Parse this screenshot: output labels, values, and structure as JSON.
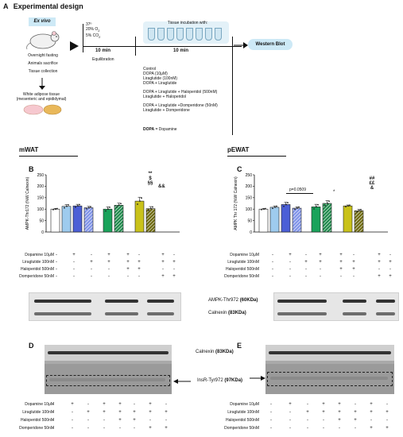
{
  "panel_a": {
    "letter": "A",
    "title": "Experimental design",
    "ex_vivo": "Ex vivo",
    "conditions": [
      "37º",
      "20% O",
      "5% CO"
    ],
    "cond_subscript": "2",
    "mouse_steps": [
      "Overnight fasting",
      "Animals sacrifice",
      "Tissue collection"
    ],
    "wat_label": "White adipose tissue",
    "wat_sub": "(mesenteric and epididymal)",
    "equil_time": "10 min",
    "equil_label": "Equilibration",
    "incubation_title": "Tissue incubation with:",
    "incubation_time": "10 min",
    "treatments": [
      "Control",
      "DOPA (10μM)",
      "Liraglutide (100nM)",
      "DOPA + Liraglutide",
      "DOPA + Liraglutide + Haloperidol (500nM)",
      "Liraglutide + Haloperidol",
      "DOPA + Liraglutide +Domperidone (50nM)",
      "Liraglutide + Domperidone"
    ],
    "dopa_bold": "DOPA",
    "dopa_def": " = Dopamine",
    "western": "Western Blot"
  },
  "mwat": {
    "title": "mWAT"
  },
  "pewat": {
    "title": "pEWAT"
  },
  "panel_b": {
    "letter": "B",
    "stats": [
      "**",
      "$",
      "§§"
    ],
    "stats_right": "&&"
  },
  "panel_c": {
    "letter": "C",
    "pval": "p=0.0509",
    "star": "*",
    "stats": [
      "##",
      "££",
      "&"
    ]
  },
  "panel_d": {
    "letter": "D"
  },
  "panel_e": {
    "letter": "E"
  },
  "blot_labels": {
    "ampk": "AMPK-Thr972 ",
    "ampk_kda": "(60KDa)",
    "calnexin": "Calnexin ",
    "calnexin_kda": "(83KDa)",
    "insr": "InsR-Tyr972 ",
    "insr_kda": "(97KDa)"
  },
  "treatment_rows": [
    {
      "label": "Dopamine  10μM",
      "marks": [
        "-",
        "+",
        "-",
        "+",
        "+",
        "-",
        "+",
        "-"
      ]
    },
    {
      "label": "Liraglutide 100nM",
      "marks": [
        "-",
        "-",
        "+",
        "+",
        "+",
        "+",
        "+",
        "+"
      ]
    },
    {
      "label": "Haloperidol 500nM",
      "marks": [
        "-",
        "-",
        "-",
        "-",
        "+",
        "+",
        "-",
        "-"
      ]
    },
    {
      "label": "Domperidone 50nM",
      "marks": [
        "-",
        "-",
        "-",
        "-",
        "-",
        "-",
        "+",
        "+"
      ]
    }
  ],
  "colors": {
    "control": "#ffffff",
    "dopa": "#9ecbee",
    "lira": "#4b5fd6",
    "dopa_lira": "#7f93e8",
    "halo_dl": "#1aa35b",
    "halo_l": "#1f8a4c",
    "dom_dl": "#c9c21a",
    "dom_l": "#6e6a10"
  },
  "chart_data": [
    {
      "type": "bar",
      "panel": "B",
      "ylabel": "AMPK-Thr172 (%W Calnexin)",
      "yticks": [
        0,
        50,
        100,
        150,
        200,
        250
      ],
      "ylim": [
        0,
        250
      ],
      "categories": [
        "Control",
        "DOPA",
        "Liraglutide",
        "DOPA + Liraglutide",
        "DOPA + Lira + Haloperidol",
        "Lira + Haloperidol",
        "DOPA + Lira + Domperidone",
        "Lira + Domperidone"
      ],
      "values": [
        100,
        112,
        114,
        106,
        100,
        117,
        135,
        102
      ],
      "errors": [
        3,
        8,
        7,
        6,
        10,
        9,
        17,
        9
      ]
    },
    {
      "type": "bar",
      "panel": "C",
      "ylabel": "AMPK Thr 172 (%W Calnexin)",
      "yticks": [
        0,
        50,
        100,
        150,
        200,
        250
      ],
      "ylim": [
        0,
        250
      ],
      "categories": [
        "Control",
        "DOPA",
        "Liraglutide",
        "DOPA + Liraglutide",
        "DOPA + Lira + Haloperidol",
        "Lira + Haloperidol",
        "DOPA + Lira + Domperidone",
        "Lira + Domperidone"
      ],
      "values": [
        100,
        108,
        120,
        104,
        110,
        125,
        114,
        93
      ],
      "errors": [
        3,
        6,
        10,
        6,
        11,
        12,
        4,
        6
      ]
    }
  ]
}
